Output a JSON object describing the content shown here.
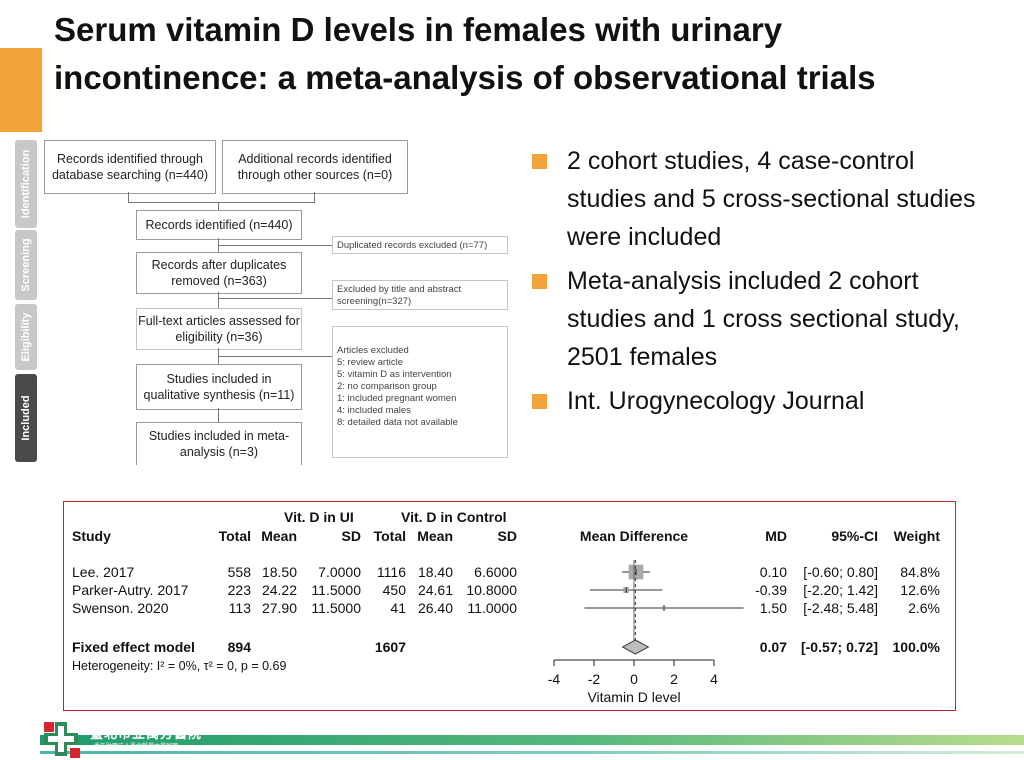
{
  "title": {
    "line1": "Serum vitamin D levels in females with urinary",
    "line2": "incontinence: a meta-analysis of observational trials"
  },
  "prisma": {
    "phases": [
      "Identification",
      "Screening",
      "Eligibility",
      "Included"
    ],
    "records_db": "Records identified through database searching (n=440)",
    "records_other": "Additional records identified through other sources (n=0)",
    "records_identified": "Records identified (n=440)",
    "duplicates_excluded": "Duplicated records excluded (n=77)",
    "after_duplicates": "Records after duplicates removed (n=363)",
    "excluded_title": "Excluded by title and abstract screening(n=327)",
    "fulltext": "Full-text articles assessed for eligibility (n=36)",
    "articles_excluded_head": "Articles excluded",
    "articles_excluded": [
      "5: review article",
      "5: vitamin D as intervention",
      "2: no comparison group",
      "1: included pregnant women",
      "4: included males",
      "8: detailed data not available"
    ],
    "qualitative": "Studies included in qualitative synthesis (n=11)",
    "meta": "Studies included in meta-analysis (n=3)"
  },
  "bullets": [
    "2 cohort studies, 4 case-control studies and 5 cross-sectional studies were included",
    "Meta-analysis included 2 cohort studies and 1 cross sectional study, 2501 females",
    "Int. Urogynecology Journal"
  ],
  "forest": {
    "group_ui": "Vit. D in UI",
    "group_ctrl": "Vit. D in Control",
    "headers": {
      "study": "Study",
      "total": "Total",
      "mean": "Mean",
      "sd": "SD",
      "plot": "Mean Difference",
      "md": "MD",
      "ci": "95%-CI",
      "weight": "Weight"
    },
    "studies": [
      {
        "name": "Lee. 2017",
        "t1": "558",
        "m1": "18.50",
        "s1": "7.0000",
        "t2": "1116",
        "m2": "18.40",
        "s2": "6.6000",
        "md_text": "0.10",
        "ci_text": "[-0.60; 0.80]",
        "weight_text": "84.8%",
        "md": 0.1,
        "lo": -0.6,
        "hi": 0.8,
        "w": 84.8
      },
      {
        "name": "Parker-Autry. 2017",
        "t1": "223",
        "m1": "24.22",
        "s1": "11.5000",
        "t2": "450",
        "m2": "24.61",
        "s2": "10.8000",
        "md_text": "-0.39",
        "ci_text": "[-2.20; 1.42]",
        "weight_text": "12.6%",
        "md": -0.39,
        "lo": -2.2,
        "hi": 1.42,
        "w": 12.6
      },
      {
        "name": "Swenson. 2020",
        "t1": "113",
        "m1": "27.90",
        "s1": "11.5000",
        "t2": "41",
        "m2": "26.40",
        "s2": "11.0000",
        "md_text": "1.50",
        "ci_text": "[-2.48; 5.48]",
        "weight_text": "2.6%",
        "md": 1.5,
        "lo": -2.48,
        "hi": 5.48,
        "w": 2.6
      }
    ],
    "fixed": {
      "name": "Fixed effect model",
      "t1": "894",
      "t2": "1607",
      "md_text": "0.07",
      "ci_text": "[-0.57; 0.72]",
      "weight_text": "100.0%",
      "md": 0.07,
      "lo": -0.57,
      "hi": 0.72
    },
    "heterogeneity": "Heterogeneity: I² = 0%, τ² = 0, p = 0.69",
    "axis_ticks": [
      "-4",
      "-2",
      "0",
      "2",
      "4"
    ],
    "axis_label": "Vitamin D level"
  },
  "chart_data": {
    "type": "forest",
    "title": "",
    "xlabel": "Vitamin D level",
    "xlim": [
      -4,
      4
    ],
    "series": [
      {
        "name": "Lee. 2017",
        "md": 0.1,
        "ci": [
          -0.6,
          0.8
        ],
        "weight": 84.8
      },
      {
        "name": "Parker-Autry. 2017",
        "md": -0.39,
        "ci": [
          -2.2,
          1.42
        ],
        "weight": 12.6
      },
      {
        "name": "Swenson. 2020",
        "md": 1.5,
        "ci": [
          -2.48,
          5.48
        ],
        "weight": 2.6
      },
      {
        "name": "Fixed effect model",
        "md": 0.07,
        "ci": [
          -0.57,
          0.72
        ],
        "weight": 100.0
      }
    ]
  },
  "footer": {
    "hospital": "臺北市立萬芳醫院",
    "subtitle": "-委託財團法人臺北醫學大學辦理-"
  }
}
